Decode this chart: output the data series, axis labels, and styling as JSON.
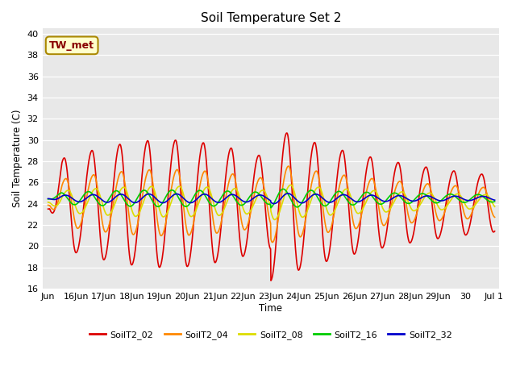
{
  "title": "Soil Temperature Set 2",
  "ylabel": "Soil Temperature (C)",
  "xlabel": "Time",
  "ylim": [
    16,
    40.5
  ],
  "yticks": [
    16,
    18,
    20,
    22,
    24,
    26,
    28,
    30,
    32,
    34,
    36,
    38,
    40
  ],
  "background_color": "#e8e8e8",
  "figure_color": "#ffffff",
  "annotation_text": "TW_met",
  "annotation_bg": "#ffffcc",
  "annotation_text_color": "#880000",
  "series_colors": [
    "#dd0000",
    "#ff8800",
    "#dddd00",
    "#00cc00",
    "#0000cc"
  ],
  "series_labels": [
    "SoilT2_02",
    "SoilT2_04",
    "SoilT2_08",
    "SoilT2_16",
    "SoilT2_32"
  ],
  "series_linewidths": [
    1.2,
    1.2,
    1.2,
    1.2,
    1.2
  ],
  "n_points": 1440,
  "start_day": 15.0,
  "end_day": 31.042,
  "tick_days": [
    15,
    16,
    17,
    18,
    19,
    20,
    21,
    22,
    23,
    24,
    25,
    26,
    27,
    28,
    29,
    30,
    31
  ],
  "tick_labels": [
    "Jun",
    "16Jun",
    "17Jun",
    "18Jun",
    "19Jun",
    "20Jun",
    "21Jun",
    "22Jun",
    "23Jun",
    "24Jun",
    "25Jun",
    "26Jun",
    "27Jun",
    "28Jun",
    "29Jun",
    "30",
    "Jul 1"
  ],
  "xlim": [
    14.8,
    31.2
  ]
}
